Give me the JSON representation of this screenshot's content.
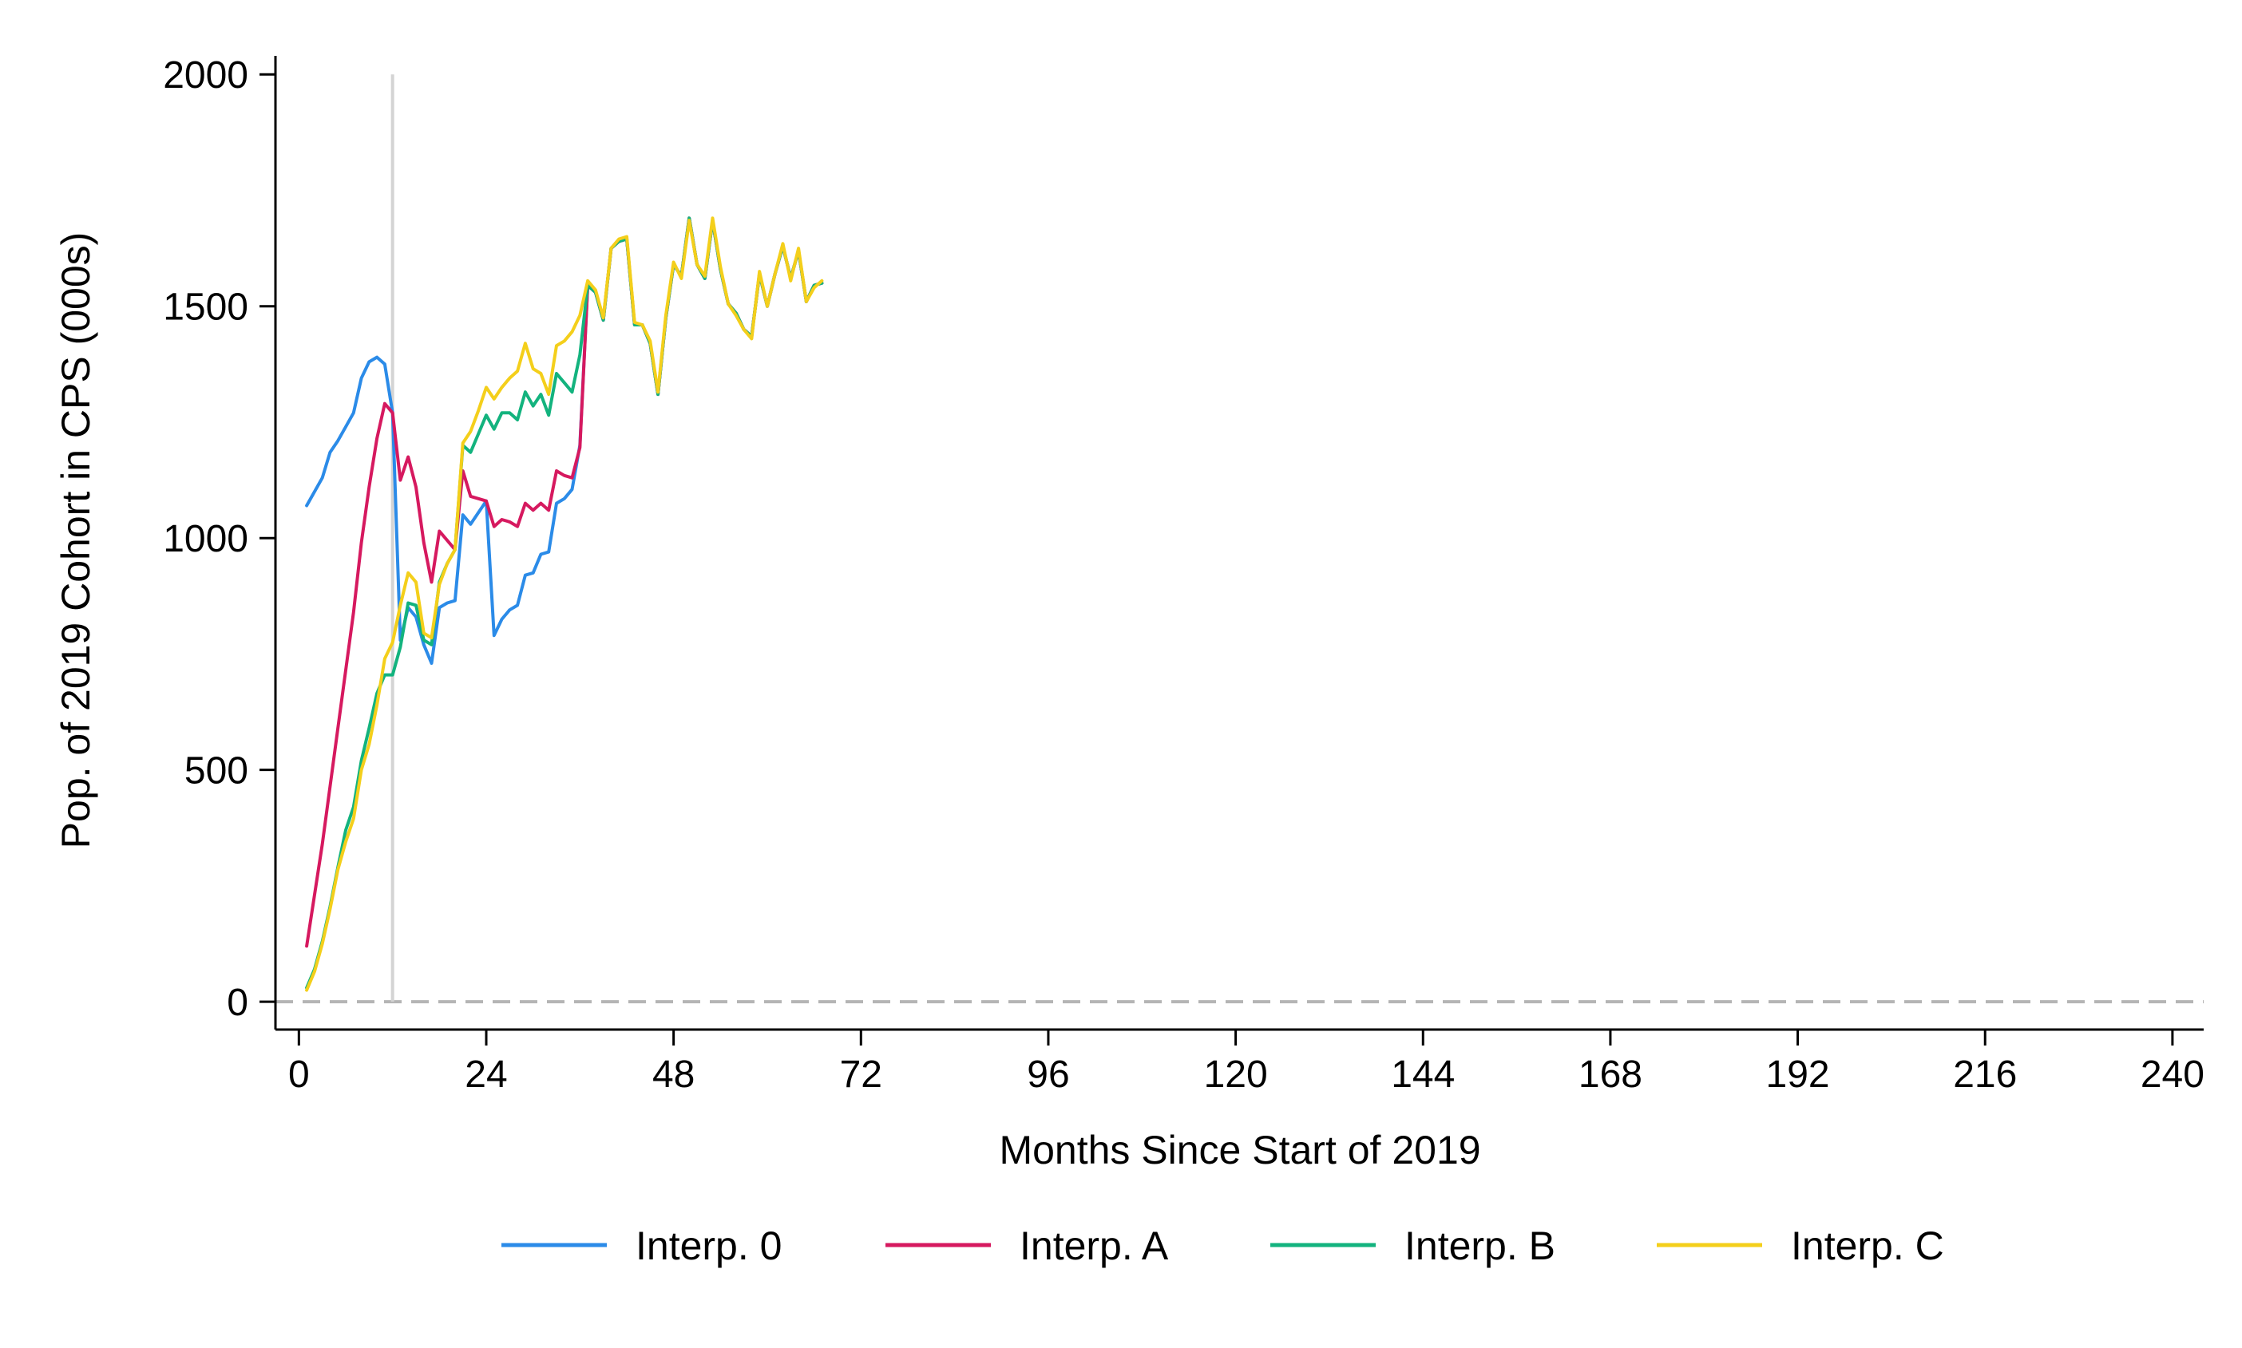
{
  "chart_data": {
    "type": "line",
    "title": "",
    "xlabel": "Months Since Start of 2019",
    "ylabel": "Pop. of 2019 Cohort in CPS (000s)",
    "xlim": [
      -3,
      244
    ],
    "ylim": [
      -60,
      2040
    ],
    "xticks": [
      0,
      24,
      48,
      72,
      96,
      120,
      144,
      168,
      192,
      216,
      240
    ],
    "yticks": [
      0,
      500,
      1000,
      1500,
      2000
    ],
    "xtick_labels": [
      "0",
      "24",
      "48",
      "72",
      "96",
      "120",
      "144",
      "168",
      "192",
      "216",
      "240"
    ],
    "ytick_labels": [
      "0",
      "500",
      "1000",
      "1500",
      "2000"
    ],
    "reference_lines": {
      "vertical_x": 12,
      "horizontal_y": 0
    },
    "legend_position": "bottom",
    "series": [
      {
        "name": "Interp. 0",
        "color": "#2b8be8",
        "points": [
          [
            1,
            1070
          ],
          [
            3,
            1130
          ],
          [
            4,
            1185
          ],
          [
            5,
            1210
          ],
          [
            6,
            1240
          ],
          [
            7,
            1270
          ],
          [
            8,
            1345
          ],
          [
            9,
            1380
          ],
          [
            10,
            1390
          ],
          [
            11,
            1375
          ],
          [
            12,
            1270
          ],
          [
            13,
            780
          ],
          [
            14,
            850
          ],
          [
            15,
            830
          ],
          [
            16,
            770
          ],
          [
            17,
            730
          ],
          [
            18,
            850
          ],
          [
            19,
            860
          ],
          [
            20,
            865
          ],
          [
            21,
            1050
          ],
          [
            22,
            1030
          ],
          [
            24,
            1080
          ],
          [
            25,
            790
          ],
          [
            26,
            825
          ],
          [
            27,
            845
          ],
          [
            28,
            855
          ],
          [
            29,
            920
          ],
          [
            30,
            925
          ],
          [
            31,
            965
          ],
          [
            32,
            970
          ],
          [
            33,
            1075
          ],
          [
            34,
            1085
          ],
          [
            35,
            1105
          ],
          [
            36,
            1200
          ],
          [
            37,
            1545
          ],
          [
            38,
            1530
          ],
          [
            39,
            1470
          ],
          [
            40,
            1625
          ],
          [
            41,
            1640
          ],
          [
            42,
            1645
          ],
          [
            43,
            1460
          ],
          [
            44,
            1460
          ],
          [
            45,
            1420
          ],
          [
            46,
            1310
          ],
          [
            47,
            1475
          ],
          [
            48,
            1590
          ],
          [
            49,
            1565
          ],
          [
            50,
            1690
          ],
          [
            51,
            1590
          ],
          [
            52,
            1560
          ],
          [
            53,
            1685
          ],
          [
            54,
            1580
          ],
          [
            55,
            1505
          ],
          [
            56,
            1485
          ],
          [
            57,
            1450
          ],
          [
            58,
            1435
          ],
          [
            59,
            1570
          ],
          [
            60,
            1500
          ],
          [
            61,
            1570
          ],
          [
            62,
            1630
          ],
          [
            63,
            1560
          ],
          [
            64,
            1620
          ],
          [
            65,
            1510
          ],
          [
            66,
            1545
          ],
          [
            67,
            1550
          ]
        ]
      },
      {
        "name": "Interp. A",
        "color": "#d6195f",
        "points": [
          [
            1,
            120
          ],
          [
            3,
            340
          ],
          [
            5,
            590
          ],
          [
            7,
            840
          ],
          [
            8,
            990
          ],
          [
            9,
            1110
          ],
          [
            10,
            1215
          ],
          [
            11,
            1290
          ],
          [
            12,
            1270
          ],
          [
            13,
            1125
          ],
          [
            14,
            1175
          ],
          [
            15,
            1110
          ],
          [
            16,
            990
          ],
          [
            17,
            905
          ],
          [
            18,
            1015
          ],
          [
            19,
            995
          ],
          [
            20,
            975
          ],
          [
            21,
            1145
          ],
          [
            22,
            1090
          ],
          [
            23,
            1085
          ],
          [
            24,
            1080
          ],
          [
            25,
            1025
          ],
          [
            26,
            1040
          ],
          [
            27,
            1035
          ],
          [
            28,
            1025
          ],
          [
            29,
            1075
          ],
          [
            30,
            1060
          ],
          [
            31,
            1075
          ],
          [
            32,
            1060
          ],
          [
            33,
            1145
          ],
          [
            34,
            1135
          ],
          [
            35,
            1130
          ],
          [
            36,
            1195
          ],
          [
            37,
            1545
          ],
          [
            38,
            1530
          ],
          [
            39,
            1470
          ],
          [
            40,
            1625
          ],
          [
            41,
            1640
          ],
          [
            42,
            1645
          ],
          [
            43,
            1460
          ],
          [
            44,
            1460
          ],
          [
            45,
            1420
          ],
          [
            46,
            1310
          ],
          [
            47,
            1475
          ],
          [
            48,
            1590
          ],
          [
            49,
            1565
          ],
          [
            50,
            1690
          ],
          [
            51,
            1590
          ],
          [
            52,
            1560
          ],
          [
            53,
            1685
          ],
          [
            54,
            1580
          ],
          [
            55,
            1505
          ],
          [
            56,
            1485
          ],
          [
            57,
            1450
          ],
          [
            58,
            1435
          ],
          [
            59,
            1570
          ],
          [
            60,
            1500
          ],
          [
            61,
            1570
          ],
          [
            62,
            1630
          ],
          [
            63,
            1560
          ],
          [
            64,
            1620
          ],
          [
            65,
            1510
          ],
          [
            66,
            1545
          ],
          [
            67,
            1550
          ]
        ]
      },
      {
        "name": "Interp. B",
        "color": "#13b37e",
        "points": [
          [
            1,
            30
          ],
          [
            2,
            70
          ],
          [
            3,
            130
          ],
          [
            4,
            205
          ],
          [
            5,
            290
          ],
          [
            6,
            370
          ],
          [
            7,
            420
          ],
          [
            8,
            520
          ],
          [
            9,
            590
          ],
          [
            10,
            665
          ],
          [
            11,
            705
          ],
          [
            12,
            705
          ],
          [
            13,
            765
          ],
          [
            14,
            860
          ],
          [
            15,
            855
          ],
          [
            16,
            780
          ],
          [
            17,
            770
          ],
          [
            18,
            905
          ],
          [
            19,
            945
          ],
          [
            20,
            975
          ],
          [
            21,
            1200
          ],
          [
            22,
            1185
          ],
          [
            23,
            1225
          ],
          [
            24,
            1265
          ],
          [
            25,
            1235
          ],
          [
            26,
            1270
          ],
          [
            27,
            1270
          ],
          [
            28,
            1255
          ],
          [
            29,
            1315
          ],
          [
            30,
            1285
          ],
          [
            31,
            1310
          ],
          [
            32,
            1265
          ],
          [
            33,
            1355
          ],
          [
            34,
            1335
          ],
          [
            35,
            1315
          ],
          [
            36,
            1395
          ],
          [
            37,
            1545
          ],
          [
            38,
            1530
          ],
          [
            39,
            1470
          ],
          [
            40,
            1625
          ],
          [
            41,
            1640
          ],
          [
            42,
            1645
          ],
          [
            43,
            1460
          ],
          [
            44,
            1460
          ],
          [
            45,
            1420
          ],
          [
            46,
            1310
          ],
          [
            47,
            1475
          ],
          [
            48,
            1590
          ],
          [
            49,
            1565
          ],
          [
            50,
            1690
          ],
          [
            51,
            1590
          ],
          [
            52,
            1560
          ],
          [
            53,
            1685
          ],
          [
            54,
            1580
          ],
          [
            55,
            1505
          ],
          [
            56,
            1485
          ],
          [
            57,
            1450
          ],
          [
            58,
            1435
          ],
          [
            59,
            1570
          ],
          [
            60,
            1500
          ],
          [
            61,
            1570
          ],
          [
            62,
            1630
          ],
          [
            63,
            1560
          ],
          [
            64,
            1620
          ],
          [
            65,
            1510
          ],
          [
            66,
            1545
          ],
          [
            67,
            1550
          ]
        ]
      },
      {
        "name": "Interp. C",
        "color": "#f4cf1b",
        "points": [
          [
            1,
            25
          ],
          [
            2,
            65
          ],
          [
            3,
            125
          ],
          [
            4,
            200
          ],
          [
            5,
            285
          ],
          [
            6,
            345
          ],
          [
            7,
            395
          ],
          [
            8,
            500
          ],
          [
            9,
            555
          ],
          [
            10,
            640
          ],
          [
            11,
            740
          ],
          [
            12,
            775
          ],
          [
            13,
            855
          ],
          [
            14,
            925
          ],
          [
            15,
            905
          ],
          [
            16,
            795
          ],
          [
            17,
            785
          ],
          [
            18,
            900
          ],
          [
            19,
            945
          ],
          [
            20,
            975
          ],
          [
            21,
            1205
          ],
          [
            22,
            1230
          ],
          [
            23,
            1275
          ],
          [
            24,
            1325
          ],
          [
            25,
            1300
          ],
          [
            26,
            1325
          ],
          [
            27,
            1345
          ],
          [
            28,
            1360
          ],
          [
            29,
            1420
          ],
          [
            30,
            1365
          ],
          [
            31,
            1355
          ],
          [
            32,
            1310
          ],
          [
            33,
            1415
          ],
          [
            34,
            1425
          ],
          [
            35,
            1445
          ],
          [
            36,
            1480
          ],
          [
            37,
            1555
          ],
          [
            38,
            1535
          ],
          [
            39,
            1475
          ],
          [
            40,
            1625
          ],
          [
            41,
            1645
          ],
          [
            42,
            1650
          ],
          [
            43,
            1465
          ],
          [
            44,
            1460
          ],
          [
            45,
            1425
          ],
          [
            46,
            1315
          ],
          [
            47,
            1480
          ],
          [
            48,
            1595
          ],
          [
            49,
            1560
          ],
          [
            50,
            1685
          ],
          [
            51,
            1590
          ],
          [
            52,
            1565
          ],
          [
            53,
            1690
          ],
          [
            54,
            1585
          ],
          [
            55,
            1505
          ],
          [
            56,
            1480
          ],
          [
            57,
            1450
          ],
          [
            58,
            1430
          ],
          [
            59,
            1575
          ],
          [
            60,
            1500
          ],
          [
            61,
            1570
          ],
          [
            62,
            1635
          ],
          [
            63,
            1555
          ],
          [
            64,
            1625
          ],
          [
            65,
            1510
          ],
          [
            66,
            1540
          ],
          [
            67,
            1555
          ]
        ]
      }
    ]
  }
}
